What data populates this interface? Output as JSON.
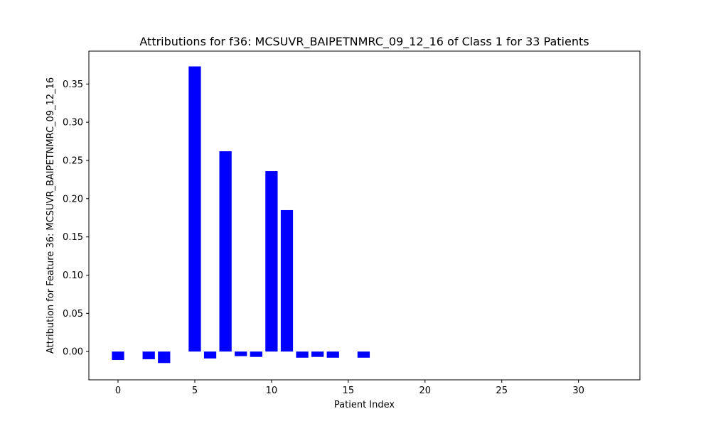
{
  "chart_data": {
    "type": "bar",
    "title": "Attributions for f36: MCSUVR_BAIPETNMRC_09_12_16 of Class 1 for 33 Patients",
    "xlabel": "Patient Index",
    "ylabel": "Attribution for Feature 36: MCSUVR_BAIPETNMRC_09_12_16",
    "bar_color": "#0000ff",
    "xlim": [
      -1.9,
      34.0
    ],
    "ylim": [
      -0.037,
      0.393
    ],
    "xticks": [
      0,
      5,
      10,
      15,
      20,
      25,
      30
    ],
    "yticks": [
      0.0,
      0.05,
      0.1,
      0.15,
      0.2,
      0.25,
      0.3,
      0.35
    ],
    "ytick_labels": [
      "0.00",
      "0.05",
      "0.10",
      "0.15",
      "0.20",
      "0.25",
      "0.30",
      "0.35"
    ],
    "grid": false,
    "x": [
      0,
      1,
      2,
      3,
      4,
      5,
      6,
      7,
      8,
      9,
      10,
      11,
      12,
      13,
      14,
      15,
      16,
      17,
      18,
      19,
      20,
      21,
      22,
      23,
      24,
      25,
      26,
      27,
      28,
      29,
      30,
      31,
      32
    ],
    "values": [
      -0.011,
      0.0,
      -0.01,
      -0.015,
      0.0,
      0.373,
      -0.009,
      0.262,
      -0.006,
      -0.007,
      0.236,
      0.185,
      -0.008,
      -0.007,
      -0.008,
      0.0,
      -0.008,
      0.0,
      0.0,
      0.0,
      0.0,
      0.0,
      0.0,
      0.0,
      0.0,
      0.0,
      0.0,
      0.0,
      0.0,
      0.0,
      0.0,
      0.0,
      0.0
    ]
  }
}
